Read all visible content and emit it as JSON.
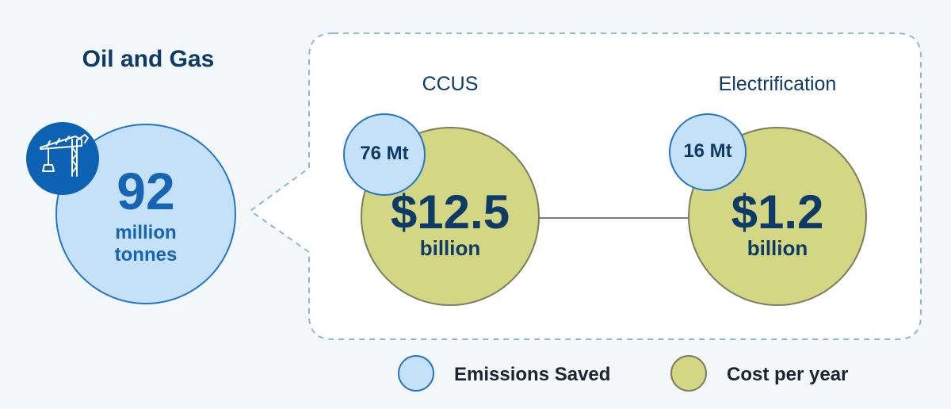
{
  "sector": {
    "title": "Oil and Gas",
    "icon": "oil-rig-icon",
    "total_value": "92",
    "total_unit_line1": "million",
    "total_unit_line2": "tonnes"
  },
  "options": [
    {
      "title": "CCUS",
      "emissions_saved": "76 Mt",
      "cost_value": "$12.5",
      "cost_unit": "billion"
    },
    {
      "title": "Electrification",
      "emissions_saved": "16 Mt",
      "cost_value": "$1.2",
      "cost_unit": "billion"
    }
  ],
  "legend": [
    {
      "label": "Emissions Saved",
      "color": "#c5e1f7",
      "border": "#2576c4"
    },
    {
      "label": "Cost per year",
      "color": "#d3d682",
      "border": "#7d7d5e"
    }
  ],
  "colors": {
    "navy": "#0d3a67",
    "blue": "#1565b4",
    "light_blue": "#c5e1f7",
    "olive": "#d3d682"
  }
}
